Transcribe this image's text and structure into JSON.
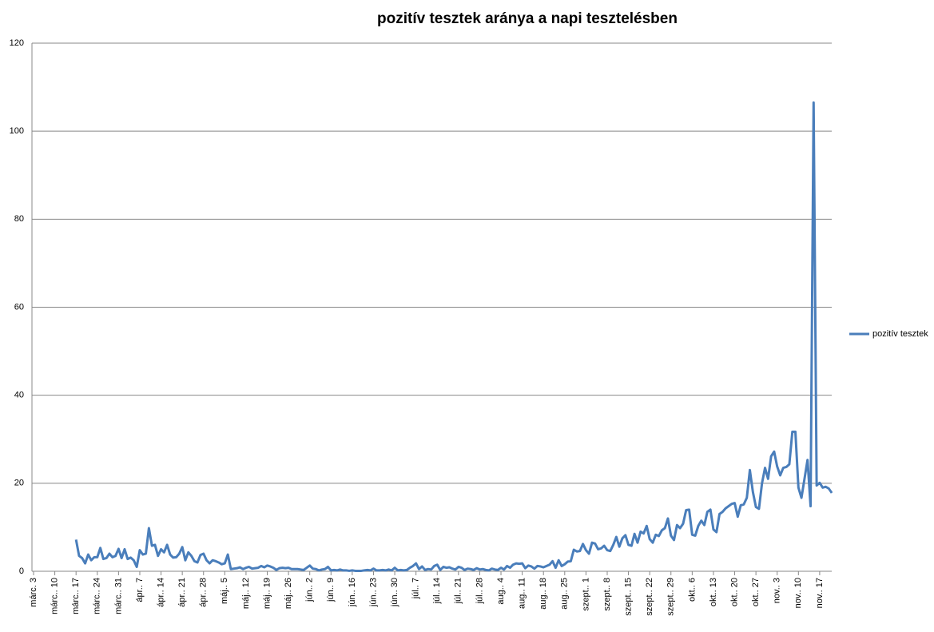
{
  "chart_data": {
    "type": "line",
    "title": "pozitív tesztek aránya a napi tesztelésben",
    "categories": [
      "márc. 3",
      null,
      null,
      null,
      null,
      null,
      null,
      "márc.. 10",
      null,
      null,
      null,
      null,
      null,
      null,
      "márc.. 17",
      null,
      null,
      null,
      null,
      null,
      null,
      "márc.. 24",
      null,
      null,
      null,
      null,
      null,
      null,
      "márc.. 31",
      null,
      null,
      null,
      null,
      null,
      null,
      "ápr.. 7",
      null,
      null,
      null,
      null,
      null,
      null,
      "ápr.. 14",
      null,
      null,
      null,
      null,
      null,
      null,
      "ápr.. 21",
      null,
      null,
      null,
      null,
      null,
      null,
      "ápr.. 28",
      null,
      null,
      null,
      null,
      null,
      null,
      "máj.. 5",
      null,
      null,
      null,
      null,
      null,
      null,
      "máj.. 12",
      null,
      null,
      null,
      null,
      null,
      null,
      "máj.. 19",
      null,
      null,
      null,
      null,
      null,
      null,
      "máj.. 26",
      null,
      null,
      null,
      null,
      null,
      null,
      "jún.. 2",
      null,
      null,
      null,
      null,
      null,
      null,
      "jún.. 9",
      null,
      null,
      null,
      null,
      null,
      null,
      "jún.. 16",
      null,
      null,
      null,
      null,
      null,
      null,
      "jún.. 23",
      null,
      null,
      null,
      null,
      null,
      null,
      "jún.. 30",
      null,
      null,
      null,
      null,
      null,
      null,
      "júl.. 7",
      null,
      null,
      null,
      null,
      null,
      null,
      "júl.. 14",
      null,
      null,
      null,
      null,
      null,
      null,
      "júl.. 21",
      null,
      null,
      null,
      null,
      null,
      null,
      "júl.. 28",
      null,
      null,
      null,
      null,
      null,
      null,
      "aug.. 4",
      null,
      null,
      null,
      null,
      null,
      null,
      "aug.. 11",
      null,
      null,
      null,
      null,
      null,
      null,
      "aug.. 18",
      null,
      null,
      null,
      null,
      null,
      null,
      "aug.. 25",
      null,
      null,
      null,
      null,
      null,
      null,
      "szept.. 1",
      null,
      null,
      null,
      null,
      null,
      null,
      "szept.. 8",
      null,
      null,
      null,
      null,
      null,
      null,
      "szept.. 15",
      null,
      null,
      null,
      null,
      null,
      null,
      "szept.. 22",
      null,
      null,
      null,
      null,
      null,
      null,
      "szept.. 29",
      null,
      null,
      null,
      null,
      null,
      null,
      "okt.. 6",
      null,
      null,
      null,
      null,
      null,
      null,
      "okt.. 13",
      null,
      null,
      null,
      null,
      null,
      null,
      "okt.. 20",
      null,
      null,
      null,
      null,
      null,
      null,
      "okt.. 27",
      null,
      null,
      null,
      null,
      null,
      null,
      "nov.. 3",
      null,
      null,
      null,
      null,
      null,
      null,
      "nov.. 10",
      null,
      null,
      null,
      null,
      null,
      null,
      "nov.. 17",
      null,
      null,
      null,
      null
    ],
    "series": [
      {
        "name": "pozitív tesztek",
        "color": "#4a7ebb",
        "values": [
          null,
          null,
          null,
          null,
          null,
          null,
          null,
          null,
          null,
          null,
          null,
          null,
          null,
          null,
          7.2,
          3.5,
          3,
          1.8,
          3.8,
          2.5,
          3.2,
          3.2,
          5.3,
          2.8,
          3,
          4,
          3.2,
          3.5,
          5.1,
          3,
          5,
          2.8,
          3.1,
          2.5,
          1,
          4.8,
          3.8,
          4,
          9.8,
          5.8,
          6,
          3.5,
          5,
          4.3,
          6,
          3.8,
          3.1,
          3.2,
          4,
          5.5,
          2.5,
          4.3,
          3.5,
          2.3,
          2,
          3.7,
          4,
          2.5,
          1.8,
          2.5,
          2.3,
          2,
          1.6,
          1.8,
          3.8,
          0.5,
          0.6,
          0.7,
          0.9,
          0.5,
          0.8,
          1,
          0.6,
          0.7,
          0.8,
          1.2,
          0.9,
          1.3,
          1.1,
          0.8,
          0.3,
          0.7,
          0.8,
          0.7,
          0.8,
          0.5,
          0.5,
          0.5,
          0.4,
          0.3,
          0.8,
          1.3,
          0.6,
          0.5,
          0.2,
          0.4,
          0.5,
          1,
          0.2,
          0.3,
          0.2,
          0.4,
          0.2,
          0.2,
          0.1,
          0.2,
          0.1,
          0.1,
          0.1,
          0.2,
          0.3,
          0.2,
          0.6,
          0.2,
          0.2,
          0.3,
          0.2,
          0.4,
          0.2,
          0.8,
          0.2,
          0.3,
          0.2,
          0.3,
          0.8,
          1.2,
          1.8,
          0.5,
          1.1,
          0.3,
          0.5,
          0.4,
          1.2,
          1.5,
          0.3,
          1,
          0.8,
          0.9,
          0.6,
          0.4,
          1,
          0.8,
          0.3,
          0.6,
          0.5,
          0.3,
          0.7,
          0.4,
          0.5,
          0.3,
          0.2,
          0.6,
          0.4,
          0.3,
          0.8,
          0.4,
          1.2,
          0.8,
          1.5,
          1.8,
          1.7,
          1.8,
          0.7,
          1.3,
          1.1,
          0.6,
          1.2,
          1.1,
          0.9,
          1.2,
          1.5,
          2.3,
          0.8,
          2.5,
          1.2,
          1.6,
          2.2,
          2.3,
          4.9,
          4.5,
          4.6,
          6.2,
          4.8,
          4,
          6.5,
          6.3,
          5,
          5.2,
          5.8,
          4.8,
          4.6,
          6,
          7.8,
          5.6,
          7.5,
          8.2,
          6,
          5.8,
          8.5,
          6.5,
          9,
          8.6,
          10.3,
          7.3,
          6.5,
          8.3,
          8,
          9.3,
          9.8,
          12,
          8.1,
          7.1,
          10.5,
          9.8,
          10.8,
          13.9,
          14,
          8.3,
          8.1,
          10.3,
          11.5,
          10.5,
          13.5,
          14,
          9.5,
          8.9,
          13,
          13.5,
          14.3,
          14.8,
          15.3,
          15.5,
          12.4,
          15,
          15.2,
          16.7,
          23,
          18,
          14.6,
          14.2,
          20,
          23.5,
          21,
          26.1,
          27.2,
          23.8,
          21.8,
          23.5,
          23.7,
          24.3,
          31.7,
          31.7,
          19,
          16.7,
          21,
          25.3,
          14.8,
          106.5,
          19.5,
          20.1,
          19,
          19.2,
          18.8,
          17.8
        ]
      }
    ],
    "ylim": [
      0,
      120
    ],
    "yticks": [
      0,
      20,
      40,
      60,
      80,
      100,
      120
    ],
    "grid": true,
    "legend": "right"
  }
}
